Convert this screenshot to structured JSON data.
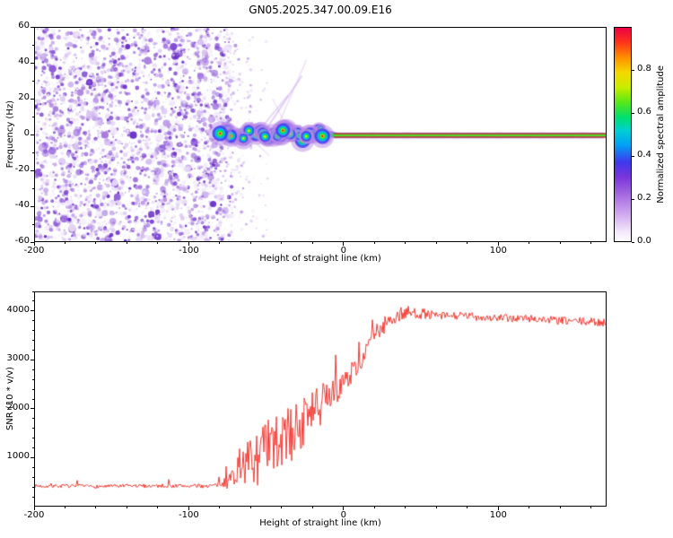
{
  "title": "GN05.2025.347.00.09.E16",
  "chart_data": [
    {
      "type": "heatmap",
      "title": "GN05.2025.347.00.09.E16",
      "xlabel": "Height of straight line (km)",
      "ylabel": "Frequency (Hz)",
      "xlim": [
        -200,
        170
      ],
      "ylim": [
        -60,
        60
      ],
      "xticks": [
        -200,
        -100,
        0,
        100
      ],
      "yticks": [
        60,
        40,
        20,
        0,
        -20,
        -40,
        -60
      ],
      "colorbar": {
        "label": "Normalized spectral amplitude",
        "range": [
          0,
          1
        ],
        "ticks": [
          0.0,
          0.2,
          0.4,
          0.6,
          0.8
        ]
      },
      "features": {
        "noise_region": {
          "x_range": [
            -200,
            -75
          ],
          "description": "dense low-amplitude purple speckle noise across all frequencies"
        },
        "spectral_line": {
          "frequency_hz": 0,
          "x_start": -80,
          "x_end": 170,
          "description": "high-amplitude narrow spectral line near 0 Hz; wiggly, lumpy and multicolored (red/yellow/green core, cyan-blue-purple fringe) between -80 and -10 km, thin and straight from 0 km to the right edge"
        },
        "diagonal_streaks": {
          "x_range": [
            -60,
            -20
          ],
          "description": "faint purple chevron streaks rising from the spectral line up to about +40 Hz"
        }
      }
    },
    {
      "type": "line",
      "xlabel": "Height of straight line (km)",
      "ylabel": "SNR (10 * v/v)",
      "xlim": [
        -200,
        170
      ],
      "ylim": [
        0,
        4400
      ],
      "xticks": [
        -200,
        -100,
        0,
        100
      ],
      "yticks": [
        1000,
        2000,
        3000,
        4000
      ],
      "color": "#f23b32",
      "x": [
        -200,
        -180,
        -160,
        -140,
        -120,
        -100,
        -90,
        -80,
        -75,
        -70,
        -65,
        -60,
        -55,
        -50,
        -45,
        -40,
        -35,
        -30,
        -25,
        -20,
        -15,
        -10,
        -5,
        0,
        5,
        10,
        15,
        20,
        25,
        30,
        35,
        40,
        50,
        60,
        80,
        100,
        120,
        140,
        160,
        170
      ],
      "values": [
        400,
        400,
        390,
        400,
        405,
        400,
        400,
        420,
        480,
        650,
        750,
        850,
        900,
        1000,
        1100,
        1250,
        1350,
        1500,
        1650,
        1800,
        1950,
        2150,
        2300,
        2500,
        2700,
        2900,
        3150,
        3500,
        3650,
        3800,
        3900,
        3950,
        3950,
        3900,
        3900,
        3850,
        3850,
        3800,
        3780,
        3760
      ],
      "noise": {
        "x": [
          -200,
          -80,
          -62,
          -50,
          -30,
          -15,
          -5,
          5,
          20,
          35,
          60,
          170
        ],
        "amplitude": [
          70,
          85,
          900,
          1400,
          1150,
          950,
          500,
          430,
          380,
          330,
          170,
          170
        ]
      }
    }
  ]
}
